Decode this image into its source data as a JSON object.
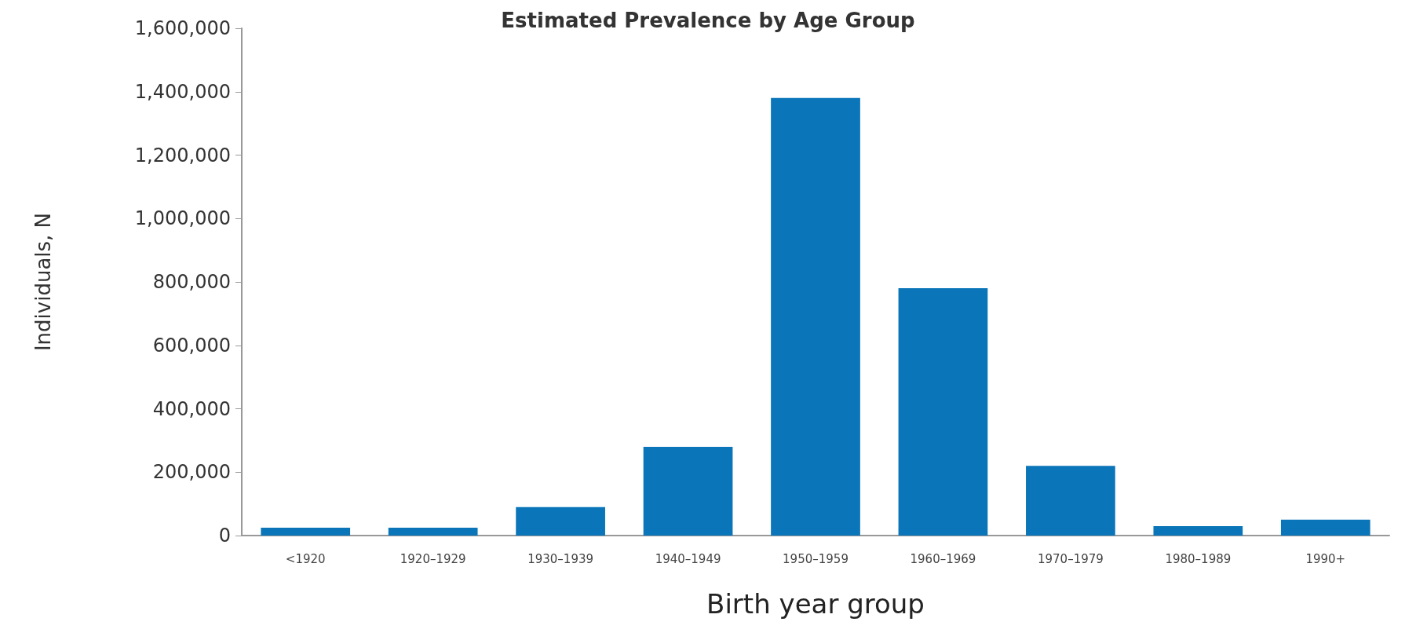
{
  "chart_data": {
    "type": "bar",
    "title": "Estimated Prevalence by Age Group",
    "xlabel": "Birth year group",
    "ylabel": "Individuals, N",
    "categories": [
      "<1920",
      "1920–1929",
      "1930–1939",
      "1940–1949",
      "1950–1959",
      "1960–1969",
      "1970–1979",
      "1980–1989",
      "1990+"
    ],
    "values": [
      25000,
      25000,
      90000,
      280000,
      1380000,
      780000,
      220000,
      30000,
      50000
    ],
    "color": "#0a75b8",
    "ylim": [
      0,
      1600000
    ],
    "yticks": [
      0,
      {
        "value": 200000,
        "label": "200,000"
      },
      {
        "value": 400000,
        "label": "400,000"
      },
      {
        "value": 600000,
        "label": "600,000"
      },
      {
        "value": 800000,
        "label": "800,000"
      },
      {
        "value": 1000000,
        "label": "1,000,000"
      },
      {
        "value": 1200000,
        "label": "1,200,000"
      },
      {
        "value": 1400000,
        "label": "1,400,000"
      },
      {
        "value": 1600000,
        "label": "1,600,000"
      }
    ],
    "grid": false
  }
}
